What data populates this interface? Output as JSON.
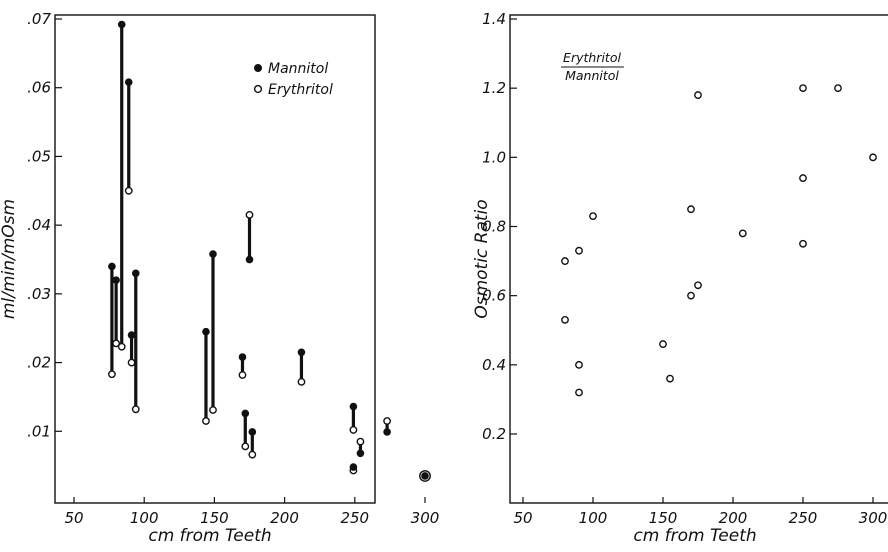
{
  "chart_data": [
    {
      "type": "scatter",
      "xlabel": "cm from Teeth",
      "ylabel": "ml/min/mOsm",
      "xlim": [
        50,
        310
      ],
      "ylim": [
        0,
        0.07
      ],
      "x_ticks": [
        "50",
        "100",
        "150",
        "200",
        "250",
        "300"
      ],
      "y_ticks": [
        ".01",
        ".02",
        ".03",
        ".04",
        ".05",
        ".06",
        ".07"
      ],
      "legend": {
        "placement": "top-right",
        "entries": [
          {
            "name": "Mannitol",
            "marker": "filled"
          },
          {
            "name": "Erythritol",
            "marker": "open"
          }
        ]
      },
      "series": [
        {
          "name": "Mannitol",
          "points": [
            [
              77,
              0.034
            ],
            [
              80,
              0.032
            ],
            [
              84,
              0.0692
            ],
            [
              89,
              0.0608
            ],
            [
              91,
              0.024
            ],
            [
              94,
              0.033
            ],
            [
              144,
              0.0245
            ],
            [
              149,
              0.0358
            ],
            [
              170,
              0.0208
            ],
            [
              172,
              0.0126
            ],
            [
              175,
              0.035
            ],
            [
              177,
              0.0099
            ],
            [
              212,
              0.0215
            ],
            [
              249,
              0.0136
            ],
            [
              249,
              0.0048
            ],
            [
              254,
              0.0068
            ],
            [
              273,
              0.0099
            ],
            [
              300,
              0.0035
            ]
          ]
        },
        {
          "name": "Erythritol",
          "points": [
            [
              77,
              0.0183
            ],
            [
              80,
              0.0228
            ],
            [
              84,
              0.0223
            ],
            [
              89,
              0.045
            ],
            [
              91,
              0.02
            ],
            [
              94,
              0.0132
            ],
            [
              144,
              0.0115
            ],
            [
              149,
              0.0131
            ],
            [
              170,
              0.0182
            ],
            [
              172,
              0.0078
            ],
            [
              175,
              0.0415
            ],
            [
              177,
              0.0066
            ],
            [
              212,
              0.0172
            ],
            [
              249,
              0.0102
            ],
            [
              249,
              0.0043
            ],
            [
              254,
              0.0085
            ],
            [
              273,
              0.0115
            ],
            [
              300,
              0.0035
            ]
          ]
        }
      ]
    },
    {
      "type": "scatter",
      "xlabel": "cm from Teeth",
      "ylabel": "Osmotic Ratio",
      "xlim": [
        50,
        310
      ],
      "ylim": [
        0,
        1.4
      ],
      "x_ticks": [
        "50",
        "100",
        "150",
        "200",
        "250",
        "300"
      ],
      "y_ticks": [
        "0.2",
        "0.4",
        "0.6",
        "0.8",
        "1.0",
        "1.2",
        "1.4"
      ],
      "annotation": {
        "numerator": "Erythritol",
        "denominator": "Mannitol"
      },
      "series": [
        {
          "name": "Erythritol/Mannitol",
          "points": [
            [
              80,
              0.53
            ],
            [
              80,
              0.7
            ],
            [
              90,
              0.4
            ],
            [
              90,
              0.32
            ],
            [
              90,
              0.73
            ],
            [
              100,
              0.83
            ],
            [
              150,
              0.46
            ],
            [
              155,
              0.36
            ],
            [
              170,
              0.85
            ],
            [
              170,
              0.6
            ],
            [
              175,
              0.63
            ],
            [
              175,
              1.18
            ],
            [
              207,
              0.78
            ],
            [
              250,
              1.2
            ],
            [
              250,
              0.94
            ],
            [
              250,
              0.75
            ],
            [
              275,
              1.2
            ],
            [
              300,
              1.0
            ]
          ]
        }
      ]
    }
  ]
}
